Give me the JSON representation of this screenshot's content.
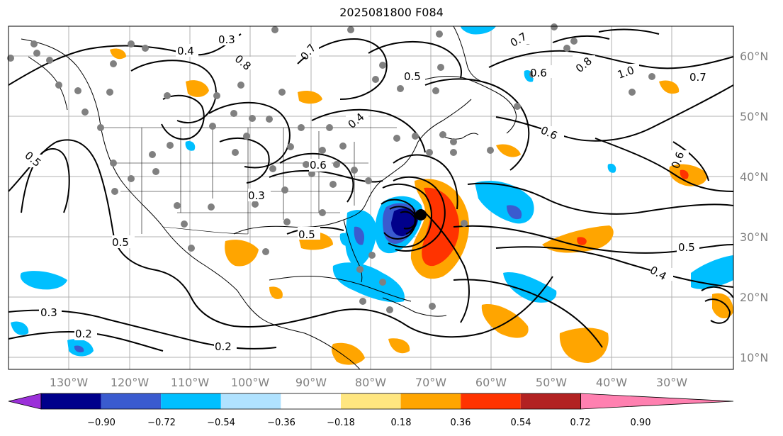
{
  "title": "2025081800 F084",
  "lon_ticks": [
    "130°W",
    "120°W",
    "110°W",
    "100°W",
    "90°W",
    "80°W",
    "70°W",
    "60°W",
    "50°W",
    "40°W",
    "30°W"
  ],
  "lat_ticks": [
    "60°N",
    "50°N",
    "40°N",
    "30°N",
    "20°N",
    "10°N"
  ],
  "colorbar": {
    "labels": [
      "−0.90",
      "−0.72",
      "−0.54",
      "−0.36",
      "−0.18",
      "0.18",
      "0.36",
      "0.54",
      "0.72",
      "0.90"
    ],
    "colors": [
      "#9b30d9",
      "#00008b",
      "#3a5bcf",
      "#00bfff",
      "#b0e2ff",
      "#ffffff",
      "#ffe680",
      "#ffa500",
      "#ff3300",
      "#b22222",
      "#ff80b0"
    ]
  },
  "contour_labels": [
    "0.3",
    "0.4",
    "0.5",
    "0.6",
    "0.7",
    "0.8",
    "1.0",
    "0.2"
  ],
  "fill_colors": {
    "orange": "#ffa500",
    "red": "#ff3300",
    "darkred": "#b22222",
    "cyan": "#00bfff",
    "blue": "#3a5bcf",
    "navy": "#00008b",
    "marker": "#808080"
  }
}
